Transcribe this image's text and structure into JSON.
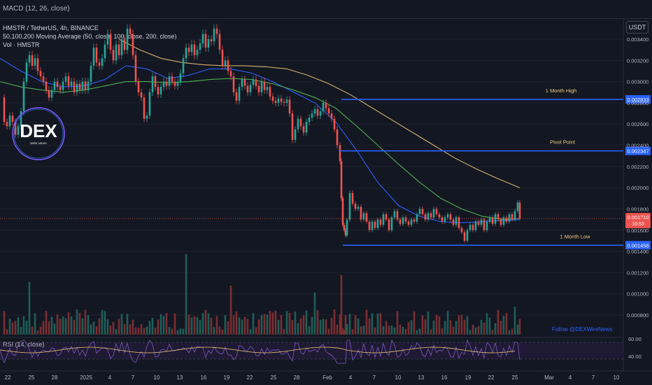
{
  "header": {
    "macd_label": "MACD (12, 26, close)",
    "currency": "USDT"
  },
  "legend": {
    "symbol": "HMSTR / TetherUS, 4h, BINANCE",
    "ma": "50,100,200 Moving Average (50, close, 100, close, 200, close)",
    "vol": "Vol · HMSTR"
  },
  "logo": {
    "text": "DEX",
    "subtext": "WIRE NEWS"
  },
  "watermark": "Follow @DEXWireNews",
  "rsi_label": "RSI (14, close)",
  "colors": {
    "bg": "#131722",
    "up": "#26a69a",
    "down": "#ef5350",
    "ma50": "#2962ff",
    "ma100": "#4caf50",
    "ma200": "#d4b26a",
    "level_line": "#2962ff",
    "rsi": "#d4b26a"
  },
  "chart_data": {
    "type": "candlestick",
    "title": "HMSTR / TetherUS, 4h, BINANCE",
    "y_ticks": [
      "0.003400",
      "0.003200",
      "0.003000",
      "0.002800",
      "0.002600",
      "0.002400",
      "0.002200",
      "0.002000",
      "0.001800",
      "0.001600",
      "0.001400",
      "0.001200",
      "0.001000",
      "0.000800"
    ],
    "y_range": [
      0.0007,
      0.0035
    ],
    "x_ticks": [
      "22",
      "25",
      "28",
      "2025",
      "4",
      "7",
      "10",
      "13",
      "16",
      "19",
      "22",
      "25",
      "28",
      "Feb",
      "4",
      "7",
      "10",
      "13",
      "16",
      "19",
      "22",
      "25",
      "Mar",
      "4",
      "7",
      "10"
    ],
    "last_price": "0.001710",
    "countdown": "16:53",
    "levels": [
      {
        "name": "1 Month High",
        "value": 0.002833,
        "label": "0.002833"
      },
      {
        "name": "Pivot Point",
        "value": 0.002347,
        "label": "0.002347"
      },
      {
        "name": "1 Month Low",
        "value": 0.001458,
        "label": "0.001458"
      }
    ],
    "price_path": [
      [
        0,
        0.00285
      ],
      [
        6,
        0.00262
      ],
      [
        10,
        0.00258
      ],
      [
        14,
        0.00268
      ],
      [
        18,
        0.00262
      ],
      [
        22,
        0.0025
      ],
      [
        26,
        0.00258
      ],
      [
        30,
        0.00272
      ],
      [
        34,
        0.003
      ],
      [
        38,
        0.00318
      ],
      [
        42,
        0.00325
      ],
      [
        46,
        0.00315
      ],
      [
        50,
        0.00322
      ],
      [
        54,
        0.0031
      ],
      [
        58,
        0.00305
      ],
      [
        62,
        0.003
      ],
      [
        66,
        0.00292
      ],
      [
        70,
        0.00285
      ],
      [
        74,
        0.00292
      ],
      [
        78,
        0.003
      ],
      [
        82,
        0.00295
      ],
      [
        86,
        0.00292
      ],
      [
        90,
        0.003
      ],
      [
        94,
        0.00305
      ],
      [
        98,
        0.00296
      ],
      [
        102,
        0.003
      ],
      [
        106,
        0.0029
      ],
      [
        110,
        0.00298
      ],
      [
        114,
        0.00292
      ],
      [
        118,
        0.003
      ],
      [
        122,
        0.00292
      ],
      [
        126,
        0.003
      ],
      [
        130,
        0.00315
      ],
      [
        134,
        0.00332
      ],
      [
        138,
        0.00318
      ],
      [
        142,
        0.00315
      ],
      [
        146,
        0.00322
      ],
      [
        150,
        0.00335
      ],
      [
        154,
        0.00345
      ],
      [
        158,
        0.0033
      ],
      [
        162,
        0.0032
      ],
      [
        166,
        0.00335
      ],
      [
        170,
        0.00325
      ],
      [
        174,
        0.0034
      ],
      [
        178,
        0.0033
      ],
      [
        182,
        0.0035
      ],
      [
        186,
        0.00345
      ],
      [
        190,
        0.00325
      ],
      [
        194,
        0.003
      ],
      [
        198,
        0.0029
      ],
      [
        202,
        0.00285
      ],
      [
        206,
        0.00265
      ],
      [
        210,
        0.00268
      ],
      [
        214,
        0.0029
      ],
      [
        218,
        0.00305
      ],
      [
        222,
        0.00295
      ],
      [
        226,
        0.00288
      ],
      [
        230,
        0.00295
      ],
      [
        234,
        0.003
      ],
      [
        238,
        0.00296
      ],
      [
        242,
        0.00305
      ],
      [
        246,
        0.003
      ],
      [
        250,
        0.00296
      ],
      [
        254,
        0.003
      ],
      [
        258,
        0.00308
      ],
      [
        262,
        0.00322
      ],
      [
        266,
        0.00332
      ],
      [
        270,
        0.00328
      ],
      [
        274,
        0.00335
      ],
      [
        278,
        0.00325
      ],
      [
        282,
        0.0033
      ],
      [
        286,
        0.00336
      ],
      [
        290,
        0.00345
      ],
      [
        294,
        0.00332
      ],
      [
        298,
        0.0034
      ],
      [
        302,
        0.00338
      ],
      [
        306,
        0.0035
      ],
      [
        310,
        0.00345
      ],
      [
        314,
        0.0033
      ],
      [
        318,
        0.00315
      ],
      [
        322,
        0.0032
      ],
      [
        326,
        0.0031
      ],
      [
        330,
        0.00305
      ],
      [
        334,
        0.0029
      ],
      [
        338,
        0.00282
      ],
      [
        342,
        0.00295
      ],
      [
        346,
        0.00302
      ],
      [
        350,
        0.00296
      ],
      [
        354,
        0.0029
      ],
      [
        358,
        0.00297
      ],
      [
        362,
        0.00302
      ],
      [
        366,
        0.00296
      ],
      [
        370,
        0.0029
      ],
      [
        374,
        0.003
      ],
      [
        378,
        0.00292
      ],
      [
        382,
        0.00295
      ],
      [
        386,
        0.00286
      ],
      [
        390,
        0.00282
      ],
      [
        394,
        0.0028
      ],
      [
        398,
        0.00284
      ],
      [
        402,
        0.00281
      ],
      [
        406,
        0.0028
      ],
      [
        410,
        0.00283
      ],
      [
        414,
        0.0027
      ],
      [
        418,
        0.00245
      ],
      [
        422,
        0.00255
      ],
      [
        426,
        0.00265
      ],
      [
        430,
        0.00258
      ],
      [
        434,
        0.00252
      ],
      [
        438,
        0.00262
      ],
      [
        442,
        0.00266
      ],
      [
        446,
        0.0027
      ],
      [
        450,
        0.00274
      ],
      [
        454,
        0.00268
      ],
      [
        458,
        0.00272
      ],
      [
        462,
        0.0028
      ],
      [
        466,
        0.00275
      ],
      [
        470,
        0.0027
      ],
      [
        474,
        0.00265
      ],
      [
        478,
        0.00255
      ],
      [
        482,
        0.0024
      ],
      [
        486,
        0.00225
      ],
      [
        488,
        0.0019
      ],
      [
        490,
        0.00165
      ],
      [
        492,
        0.0016
      ],
      [
        494,
        0.00155
      ],
      [
        496,
        0.0017
      ],
      [
        500,
        0.00195
      ],
      [
        504,
        0.00185
      ],
      [
        508,
        0.0018
      ],
      [
        512,
        0.00182
      ],
      [
        516,
        0.0017
      ],
      [
        520,
        0.00176
      ],
      [
        524,
        0.00168
      ],
      [
        528,
        0.0016
      ],
      [
        532,
        0.00168
      ],
      [
        536,
        0.00162
      ],
      [
        540,
        0.0017
      ],
      [
        544,
        0.00165
      ],
      [
        548,
        0.00175
      ],
      [
        552,
        0.0017
      ],
      [
        556,
        0.0016
      ],
      [
        560,
        0.00172
      ],
      [
        564,
        0.00178
      ],
      [
        568,
        0.0017
      ],
      [
        572,
        0.00166
      ],
      [
        576,
        0.00172
      ],
      [
        580,
        0.00168
      ],
      [
        584,
        0.00165
      ],
      [
        588,
        0.0017
      ],
      [
        592,
        0.00168
      ],
      [
        596,
        0.00175
      ],
      [
        600,
        0.0018
      ],
      [
        604,
        0.00175
      ],
      [
        608,
        0.0017
      ],
      [
        612,
        0.00176
      ],
      [
        616,
        0.00172
      ],
      [
        620,
        0.0018
      ],
      [
        624,
        0.00175
      ],
      [
        628,
        0.00172
      ],
      [
        632,
        0.00168
      ],
      [
        636,
        0.00172
      ],
      [
        640,
        0.00175
      ],
      [
        644,
        0.0017
      ],
      [
        648,
        0.00165
      ],
      [
        652,
        0.00172
      ],
      [
        656,
        0.00162
      ],
      [
        660,
        0.00158
      ],
      [
        664,
        0.0015
      ],
      [
        668,
        0.0016
      ],
      [
        672,
        0.00165
      ],
      [
        676,
        0.0016
      ],
      [
        680,
        0.00168
      ],
      [
        684,
        0.00165
      ],
      [
        688,
        0.0017
      ],
      [
        692,
        0.0016
      ],
      [
        696,
        0.00168
      ],
      [
        700,
        0.00172
      ],
      [
        704,
        0.00166
      ],
      [
        708,
        0.00175
      ],
      [
        712,
        0.0017
      ],
      [
        716,
        0.00165
      ],
      [
        720,
        0.00172
      ],
      [
        724,
        0.00168
      ],
      [
        728,
        0.00175
      ],
      [
        732,
        0.0017
      ],
      [
        736,
        0.00178
      ],
      [
        740,
        0.00186
      ],
      [
        743,
        0.00171
      ]
    ],
    "ma50": [
      [
        0,
        0.00322
      ],
      [
        30,
        0.0031
      ],
      [
        60,
        0.003
      ],
      [
        90,
        0.00295
      ],
      [
        120,
        0.00296
      ],
      [
        150,
        0.00302
      ],
      [
        180,
        0.00315
      ],
      [
        210,
        0.00312
      ],
      [
        240,
        0.00303
      ],
      [
        270,
        0.00306
      ],
      [
        300,
        0.00312
      ],
      [
        330,
        0.00312
      ],
      [
        360,
        0.00308
      ],
      [
        390,
        0.003
      ],
      [
        420,
        0.0029
      ],
      [
        450,
        0.0028
      ],
      [
        480,
        0.00262
      ],
      [
        510,
        0.00235
      ],
      [
        540,
        0.00205
      ],
      [
        570,
        0.00183
      ],
      [
        600,
        0.00173
      ],
      [
        630,
        0.00168
      ],
      [
        660,
        0.00167
      ],
      [
        690,
        0.00168
      ],
      [
        720,
        0.00169
      ],
      [
        743,
        0.0017
      ]
    ],
    "ma100": [
      [
        0,
        0.003
      ],
      [
        30,
        0.00295
      ],
      [
        60,
        0.00292
      ],
      [
        90,
        0.0029
      ],
      [
        120,
        0.00292
      ],
      [
        150,
        0.00296
      ],
      [
        180,
        0.003
      ],
      [
        210,
        0.003
      ],
      [
        240,
        0.00299
      ],
      [
        270,
        0.003
      ],
      [
        300,
        0.00302
      ],
      [
        330,
        0.00303
      ],
      [
        360,
        0.00302
      ],
      [
        390,
        0.00298
      ],
      [
        420,
        0.00292
      ],
      [
        450,
        0.00285
      ],
      [
        480,
        0.00275
      ],
      [
        510,
        0.00258
      ],
      [
        540,
        0.0024
      ],
      [
        570,
        0.00222
      ],
      [
        600,
        0.00205
      ],
      [
        630,
        0.0019
      ],
      [
        660,
        0.0018
      ],
      [
        690,
        0.00173
      ],
      [
        720,
        0.0017
      ],
      [
        743,
        0.00171
      ]
    ],
    "ma200": [
      [
        170,
        0.0034
      ],
      [
        200,
        0.0033
      ],
      [
        230,
        0.00322
      ],
      [
        260,
        0.00318
      ],
      [
        290,
        0.00316
      ],
      [
        320,
        0.00315
      ],
      [
        350,
        0.00315
      ],
      [
        380,
        0.00314
      ],
      [
        410,
        0.00312
      ],
      [
        440,
        0.00306
      ],
      [
        470,
        0.00298
      ],
      [
        500,
        0.00288
      ],
      [
        530,
        0.00276
      ],
      [
        560,
        0.00264
      ],
      [
        590,
        0.00252
      ],
      [
        620,
        0.0024
      ],
      [
        650,
        0.00228
      ],
      [
        680,
        0.00218
      ],
      [
        710,
        0.00209
      ],
      [
        743,
        0.002
      ]
    ],
    "rsi": {
      "levels": [
        "60.00",
        "40.00"
      ]
    }
  }
}
